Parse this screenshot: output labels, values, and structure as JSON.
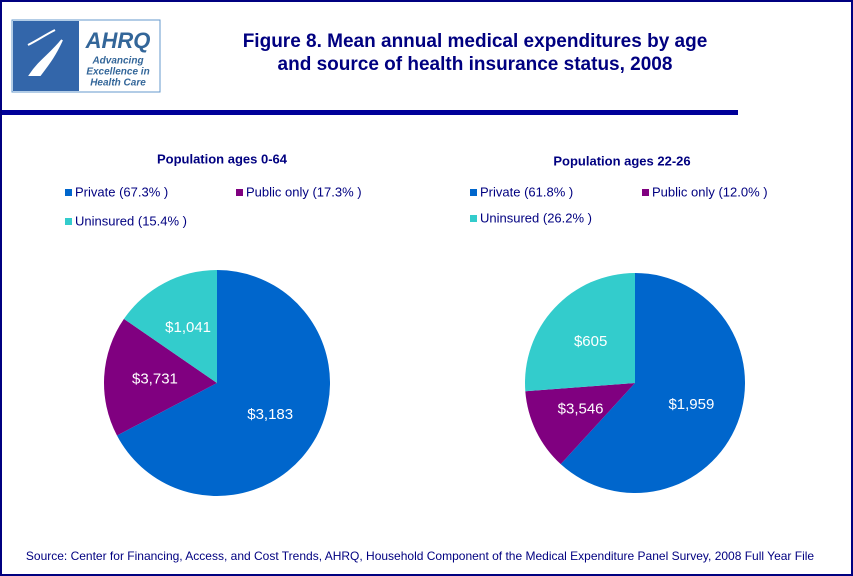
{
  "logo": {
    "name": "AHRQ",
    "tagline": [
      "Advancing",
      "Excellence in",
      "Health Care"
    ]
  },
  "title": [
    "Figure 8. Mean annual medical expenditures by age",
    "and source of health insurance status, 2008"
  ],
  "source": "Source: Center for Financing, Access, and Cost Trends, AHRQ, Household Component of the Medical Expenditure Panel Survey, 2008 Full Year File",
  "chart_data": [
    {
      "type": "pie",
      "title": "Population ages 0-64",
      "categories": [
        "Private (67.3% )",
        "Public only (17.3% )",
        "Uninsured (15.4% )"
      ],
      "values": [
        67.3,
        17.3,
        15.4
      ],
      "colors": [
        "#0066cc",
        "#800080",
        "#33cccc"
      ],
      "expenditure_labels": [
        "$3,183",
        "$3,731",
        "$1,041"
      ]
    },
    {
      "type": "pie",
      "title": "Population ages 22-26",
      "categories": [
        "Private (61.8% )",
        "Public only (12.0% )",
        "Uninsured (26.2% )"
      ],
      "values": [
        61.8,
        12.0,
        26.2
      ],
      "colors": [
        "#0066cc",
        "#800080",
        "#33cccc"
      ],
      "expenditure_labels": [
        "$1,959",
        "$3,546",
        "$605"
      ]
    }
  ]
}
